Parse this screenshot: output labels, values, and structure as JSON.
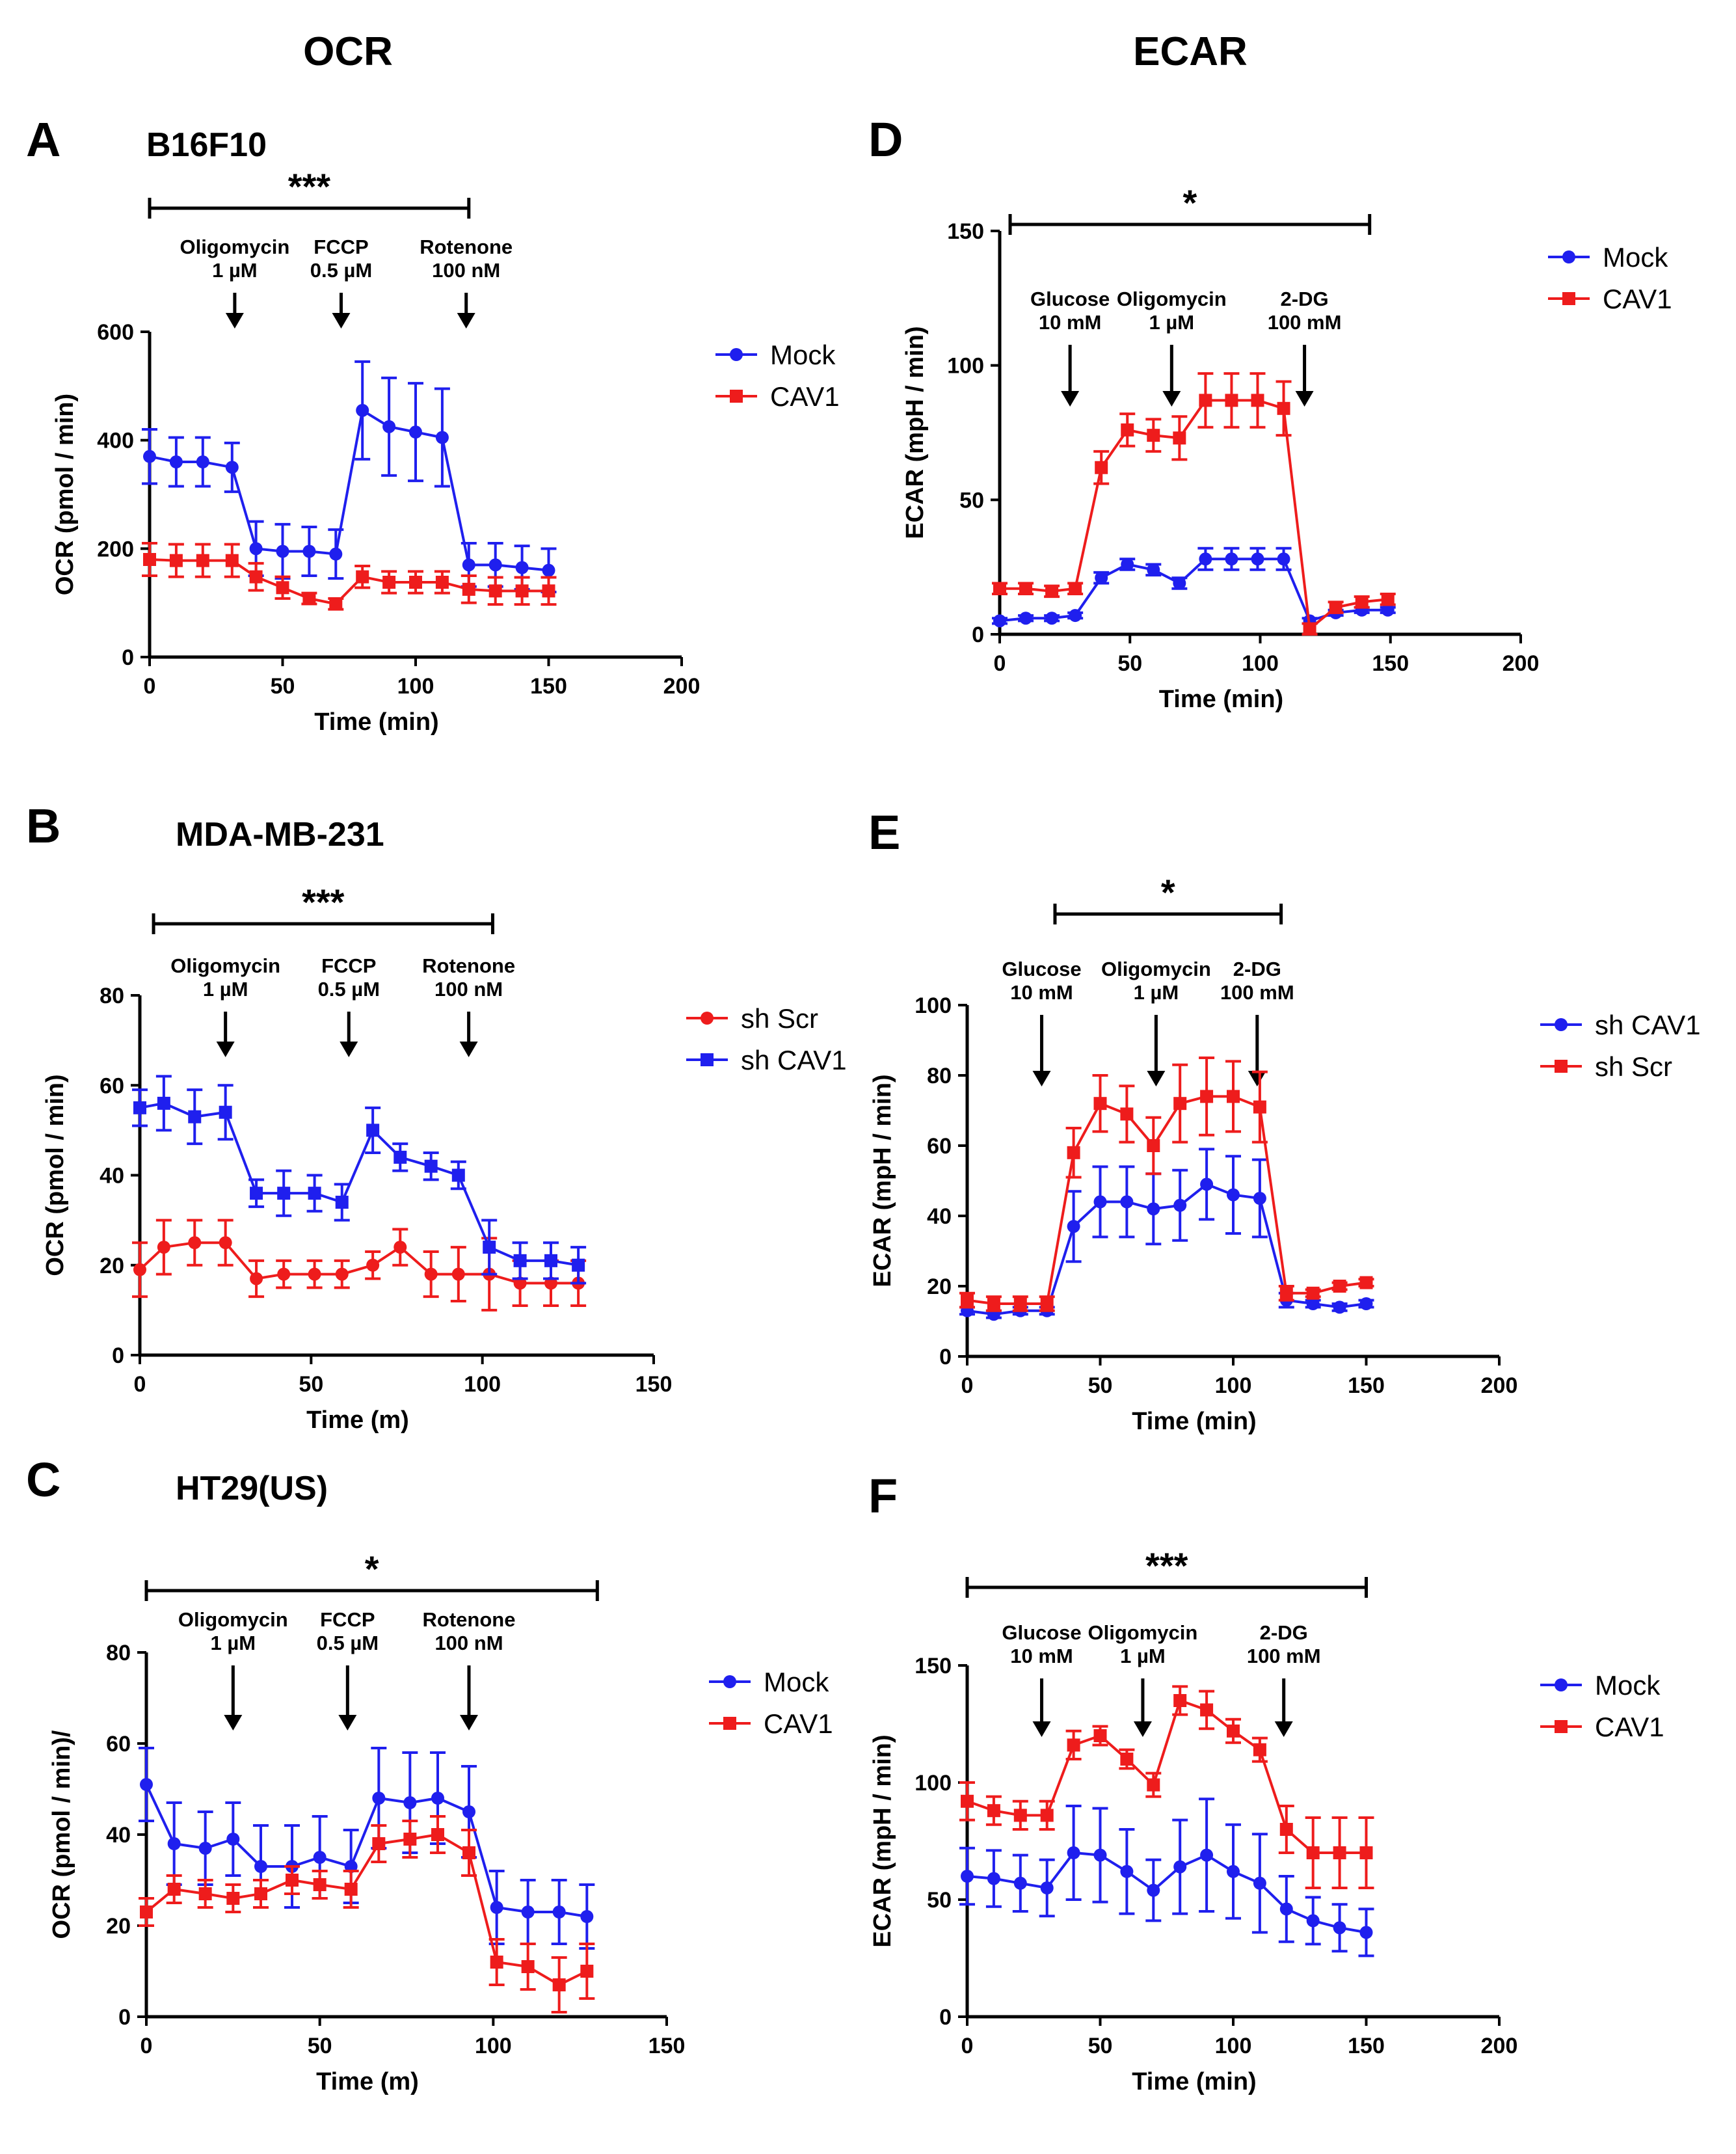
{
  "figure": {
    "column_titles": [
      "OCR",
      "ECAR"
    ]
  },
  "colors": {
    "blue": "#1f1fee",
    "red": "#ee1c1c"
  },
  "chart_data": [
    {
      "id": "A",
      "type": "line",
      "panel_label": "A",
      "cell_line": "B16F10",
      "xlabel": "Time (min)",
      "ylabel": "OCR (pmol / min)",
      "xlim": [
        0,
        200
      ],
      "ylim": [
        0,
        600
      ],
      "xticks": [
        0,
        50,
        100,
        150,
        200
      ],
      "yticks": [
        0,
        200,
        400,
        600
      ],
      "significance": {
        "label": "***",
        "x_start": 0,
        "x_end": 120
      },
      "injections": [
        {
          "name": "Oligomycin",
          "dose": "1 µM",
          "x": 32
        },
        {
          "name": "FCCP",
          "dose": "0.5 µM",
          "x": 72
        },
        {
          "name": "Rotenone",
          "dose": "100 nM",
          "x": 119
        }
      ],
      "series": [
        {
          "name": "Mock",
          "color": "#1f1fee",
          "marker": "circle",
          "x": [
            0,
            10,
            20,
            31,
            40,
            50,
            60,
            70,
            80,
            90,
            100,
            110,
            120,
            130,
            140,
            150
          ],
          "y": [
            370,
            360,
            360,
            350,
            200,
            195,
            195,
            190,
            455,
            425,
            415,
            405,
            170,
            170,
            165,
            160
          ],
          "err": [
            50,
            45,
            45,
            45,
            50,
            50,
            45,
            45,
            90,
            90,
            90,
            90,
            40,
            40,
            40,
            40
          ]
        },
        {
          "name": "CAV1",
          "color": "#ee1c1c",
          "marker": "square",
          "x": [
            0,
            10,
            20,
            31,
            40,
            50,
            60,
            70,
            80,
            90,
            100,
            110,
            120,
            130,
            140,
            150
          ],
          "y": [
            180,
            178,
            178,
            178,
            148,
            128,
            108,
            98,
            148,
            138,
            138,
            138,
            125,
            122,
            122,
            122
          ],
          "err": [
            30,
            30,
            30,
            30,
            25,
            20,
            10,
            10,
            20,
            20,
            20,
            20,
            25,
            25,
            25,
            25
          ]
        }
      ]
    },
    {
      "id": "B",
      "type": "line",
      "panel_label": "B",
      "cell_line": "MDA-MB-231",
      "xlabel": "Time (m)",
      "ylabel": "OCR (pmol / min)",
      "xlim": [
        0,
        150
      ],
      "ylim": [
        0,
        80
      ],
      "xticks": [
        0,
        50,
        100,
        150
      ],
      "yticks": [
        0,
        20,
        40,
        60,
        80
      ],
      "significance": {
        "label": "***",
        "x_start": 4,
        "x_end": 103
      },
      "injections": [
        {
          "name": "Oligomycin",
          "dose": "1 µM",
          "x": 25
        },
        {
          "name": "FCCP",
          "dose": "0.5 µM",
          "x": 61
        },
        {
          "name": "Rotenone",
          "dose": "100 nM",
          "x": 96
        }
      ],
      "series": [
        {
          "name": "sh Scr",
          "color": "#ee1c1c",
          "marker": "circle",
          "x": [
            0,
            7,
            16,
            25,
            34,
            42,
            51,
            59,
            68,
            76,
            85,
            93,
            102,
            111,
            120,
            128
          ],
          "y": [
            19,
            24,
            25,
            25,
            17,
            18,
            18,
            18,
            20,
            24,
            18,
            18,
            18,
            16,
            16,
            16
          ],
          "err": [
            6,
            6,
            5,
            5,
            4,
            3,
            3,
            3,
            3,
            4,
            5,
            6,
            8,
            5,
            5,
            5
          ]
        },
        {
          "name": "sh CAV1",
          "color": "#1f1fee",
          "marker": "square",
          "x": [
            0,
            7,
            16,
            25,
            34,
            42,
            51,
            59,
            68,
            76,
            85,
            93,
            102,
            111,
            120,
            128
          ],
          "y": [
            55,
            56,
            53,
            54,
            36,
            36,
            36,
            34,
            50,
            44,
            42,
            40,
            24,
            21,
            21,
            20
          ],
          "err": [
            4,
            6,
            6,
            6,
            3,
            5,
            4,
            4,
            5,
            3,
            3,
            3,
            6,
            4,
            4,
            4
          ]
        }
      ]
    },
    {
      "id": "C",
      "type": "line",
      "panel_label": "C",
      "cell_line": "HT29(US)",
      "xlabel": "Time (m)",
      "ylabel": "OCR (pmol / min)/",
      "xlim": [
        0,
        150
      ],
      "ylim": [
        0,
        80
      ],
      "xticks": [
        0,
        50,
        100,
        150
      ],
      "yticks": [
        0,
        20,
        40,
        60,
        80
      ],
      "significance": {
        "label": "*",
        "x_start": 0,
        "x_end": 130
      },
      "injections": [
        {
          "name": "Oligomycin",
          "dose": "1 µM",
          "x": 25
        },
        {
          "name": "FCCP",
          "dose": "0.5 µM",
          "x": 58
        },
        {
          "name": "Rotenone",
          "dose": "100 nM",
          "x": 93
        }
      ],
      "series": [
        {
          "name": "Mock",
          "color": "#1f1fee",
          "marker": "circle",
          "x": [
            0,
            8,
            17,
            25,
            33,
            42,
            50,
            59,
            67,
            76,
            84,
            93,
            101,
            110,
            119,
            127
          ],
          "y": [
            51,
            38,
            37,
            39,
            33,
            33,
            35,
            33,
            48,
            47,
            48,
            45,
            24,
            23,
            23,
            22
          ],
          "err": [
            8,
            9,
            8,
            8,
            9,
            9,
            9,
            8,
            11,
            11,
            10,
            10,
            8,
            7,
            7,
            7
          ]
        },
        {
          "name": "CAV1",
          "color": "#ee1c1c",
          "marker": "square",
          "x": [
            0,
            8,
            17,
            25,
            33,
            42,
            50,
            59,
            67,
            76,
            84,
            93,
            101,
            110,
            119,
            127
          ],
          "y": [
            23,
            28,
            27,
            26,
            27,
            30,
            29,
            28,
            38,
            39,
            40,
            36,
            12,
            11,
            7,
            10
          ],
          "err": [
            3,
            3,
            3,
            3,
            3,
            3,
            3,
            4,
            4,
            4,
            4,
            5,
            5,
            5,
            6,
            6
          ]
        }
      ]
    },
    {
      "id": "D",
      "type": "line",
      "panel_label": "D",
      "xlabel": "Time (min)",
      "ylabel": "ECAR (mpH / min)",
      "xlim": [
        0,
        200
      ],
      "ylim": [
        0,
        150
      ],
      "xticks": [
        0,
        50,
        100,
        150,
        200
      ],
      "yticks": [
        0,
        50,
        100,
        150
      ],
      "significance": {
        "label": "*",
        "x_start": 4,
        "x_end": 142
      },
      "injections": [
        {
          "name": "Glucose",
          "dose": "10 mM",
          "x": 27
        },
        {
          "name": "Oligomycin",
          "dose": "1 µM",
          "x": 66
        },
        {
          "name": "2-DG",
          "dose": "100 mM",
          "x": 117
        }
      ],
      "series": [
        {
          "name": "Mock",
          "color": "#1f1fee",
          "marker": "circle",
          "x": [
            0,
            10,
            20,
            29,
            39,
            49,
            59,
            69,
            79,
            89,
            99,
            109,
            119,
            129,
            139,
            149
          ],
          "y": [
            5,
            6,
            6,
            7,
            21,
            26,
            24,
            19,
            28,
            28,
            28,
            28,
            5,
            8,
            9,
            9
          ],
          "err": [
            1,
            1,
            1,
            1,
            2,
            2,
            2,
            2,
            4,
            4,
            4,
            4,
            1,
            1,
            1,
            1
          ]
        },
        {
          "name": "CAV1",
          "color": "#ee1c1c",
          "marker": "square",
          "x": [
            0,
            10,
            20,
            29,
            39,
            49,
            59,
            69,
            79,
            89,
            99,
            109,
            119,
            129,
            139,
            149
          ],
          "y": [
            17,
            17,
            16,
            17,
            62,
            76,
            74,
            73,
            87,
            87,
            87,
            84,
            2,
            10,
            12,
            13
          ],
          "err": [
            2,
            2,
            2,
            2,
            6,
            6,
            6,
            8,
            10,
            10,
            10,
            10,
            2,
            2,
            2,
            2
          ]
        }
      ]
    },
    {
      "id": "E",
      "type": "line",
      "panel_label": "E",
      "xlabel": "Time (min)",
      "ylabel": "ECAR (mpH / min)",
      "xlim": [
        0,
        200
      ],
      "ylim": [
        0,
        100
      ],
      "xticks": [
        0,
        50,
        100,
        150,
        200
      ],
      "yticks": [
        0,
        20,
        40,
        60,
        80,
        100
      ],
      "significance": {
        "label": "*",
        "x_start": 33,
        "x_end": 118
      },
      "injections": [
        {
          "name": "Glucose",
          "dose": "10 mM",
          "x": 28
        },
        {
          "name": "Oligomycin",
          "dose": "1 µM",
          "x": 71
        },
        {
          "name": "2-DG",
          "dose": "100 mM",
          "x": 109
        }
      ],
      "series": [
        {
          "name": "sh CAV1",
          "color": "#1f1fee",
          "marker": "circle",
          "x": [
            0,
            10,
            20,
            30,
            40,
            50,
            60,
            70,
            80,
            90,
            100,
            110,
            120,
            130,
            140,
            150
          ],
          "y": [
            13,
            12,
            13,
            13,
            37,
            44,
            44,
            42,
            43,
            49,
            46,
            45,
            16,
            15,
            14,
            15
          ],
          "err": [
            1,
            1,
            1,
            1,
            10,
            10,
            10,
            10,
            10,
            10,
            11,
            11,
            2,
            1,
            1,
            1
          ]
        },
        {
          "name": "sh Scr",
          "color": "#ee1c1c",
          "marker": "square",
          "x": [
            0,
            10,
            20,
            30,
            40,
            50,
            60,
            70,
            80,
            90,
            100,
            110,
            120,
            130,
            140,
            150
          ],
          "y": [
            16,
            15,
            15,
            15,
            58,
            72,
            69,
            60,
            72,
            74,
            74,
            71,
            18,
            18,
            20,
            21
          ],
          "err": [
            2,
            2,
            2,
            2,
            7,
            8,
            8,
            8,
            11,
            11,
            10,
            10,
            2,
            1,
            1,
            1
          ]
        }
      ]
    },
    {
      "id": "F",
      "type": "line",
      "panel_label": "F",
      "xlabel": "Time (min)",
      "ylabel": "ECAR (mpH / min)",
      "xlim": [
        0,
        200
      ],
      "ylim": [
        0,
        150
      ],
      "xticks": [
        0,
        50,
        100,
        150,
        200
      ],
      "yticks": [
        0,
        50,
        100,
        150
      ],
      "significance": {
        "label": "***",
        "x_start": 0,
        "x_end": 150
      },
      "injections": [
        {
          "name": "Glucose",
          "dose": "10 mM",
          "x": 28
        },
        {
          "name": "Oligomycin",
          "dose": "1 µM",
          "x": 66
        },
        {
          "name": "2-DG",
          "dose": "100 mM",
          "x": 119
        }
      ],
      "series": [
        {
          "name": "Mock",
          "color": "#1f1fee",
          "marker": "circle",
          "x": [
            0,
            10,
            20,
            30,
            40,
            50,
            60,
            70,
            80,
            90,
            100,
            110,
            120,
            130,
            140,
            150
          ],
          "y": [
            60,
            59,
            57,
            55,
            70,
            69,
            62,
            54,
            64,
            69,
            62,
            57,
            46,
            41,
            38,
            36
          ],
          "err": [
            12,
            12,
            12,
            12,
            20,
            20,
            18,
            13,
            20,
            24,
            20,
            21,
            14,
            10,
            10,
            10
          ]
        },
        {
          "name": "CAV1",
          "color": "#ee1c1c",
          "marker": "square",
          "x": [
            0,
            10,
            20,
            30,
            40,
            50,
            60,
            70,
            80,
            90,
            100,
            110,
            120,
            130,
            140,
            150
          ],
          "y": [
            92,
            88,
            86,
            86,
            116,
            120,
            110,
            99,
            135,
            131,
            122,
            114,
            80,
            70,
            70,
            70
          ],
          "err": [
            8,
            6,
            6,
            6,
            6,
            4,
            4,
            5,
            6,
            8,
            5,
            5,
            10,
            15,
            15,
            15
          ]
        }
      ]
    }
  ]
}
